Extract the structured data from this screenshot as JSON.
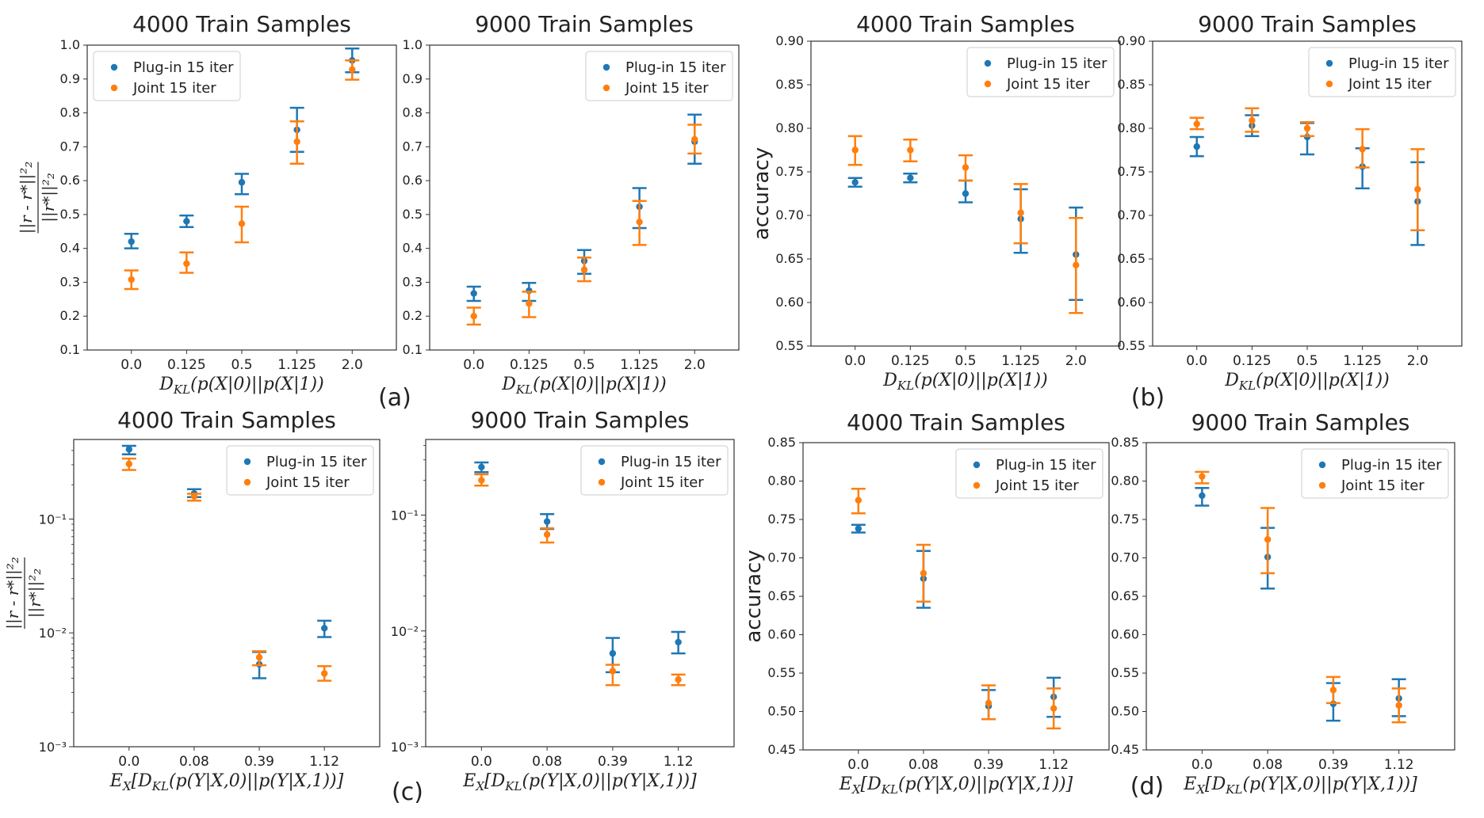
{
  "colors": {
    "plugin": "#1f77b4",
    "joint": "#ff7f0e"
  },
  "panel_letters": [
    "(a)",
    "(b)",
    "(c)",
    "(d)"
  ],
  "chart_data": [
    {
      "id": "a1",
      "type": "scatter",
      "title": "4000 Train Samples",
      "ylabel": "||r - r*||²₂ / ||r*||²₂",
      "ylabel_kind": "ratio",
      "xlabel": "D_KL(p(X|0)||p(X|1))",
      "categories": [
        "0.0",
        "0.125",
        "0.5",
        "1.125",
        "2.0"
      ],
      "scale": "linear",
      "ylim": [
        0.1,
        1.0
      ],
      "yticks": [
        "0.1",
        "0.2",
        "0.3",
        "0.4",
        "0.5",
        "0.6",
        "0.7",
        "0.8",
        "0.9",
        "1.0"
      ],
      "legend": "top-left",
      "series": [
        {
          "name": "Plug-in 15 iter",
          "color": "plugin",
          "values": [
            0.42,
            0.48,
            0.595,
            0.75,
            0.955
          ],
          "err_low": [
            0.4,
            0.463,
            0.56,
            0.685,
            0.92
          ],
          "err_high": [
            0.443,
            0.497,
            0.62,
            0.815,
            0.99
          ]
        },
        {
          "name": "Joint 15 iter",
          "color": "joint",
          "values": [
            0.308,
            0.355,
            0.473,
            0.715,
            0.928
          ],
          "err_low": [
            0.28,
            0.328,
            0.418,
            0.65,
            0.898
          ],
          "err_high": [
            0.335,
            0.388,
            0.523,
            0.775,
            0.955
          ]
        }
      ]
    },
    {
      "id": "a2",
      "type": "scatter",
      "title": "9000 Train Samples",
      "xlabel": "D_KL(p(X|0)||p(X|1))",
      "categories": [
        "0.0",
        "0.125",
        "0.5",
        "1.125",
        "2.0"
      ],
      "scale": "linear",
      "ylim": [
        0.1,
        1.0
      ],
      "yticks": [
        "0.1",
        "0.2",
        "0.3",
        "0.4",
        "0.5",
        "0.6",
        "0.7",
        "0.8",
        "0.9",
        "1.0"
      ],
      "legend": "top-right",
      "series": [
        {
          "name": "Plug-in 15 iter",
          "color": "plugin",
          "values": [
            0.267,
            0.275,
            0.363,
            0.523,
            0.715
          ],
          "err_low": [
            0.245,
            0.245,
            0.325,
            0.46,
            0.65
          ],
          "err_high": [
            0.287,
            0.298,
            0.395,
            0.578,
            0.795
          ]
        },
        {
          "name": "Joint 15 iter",
          "color": "joint",
          "values": [
            0.2,
            0.237,
            0.337,
            0.478,
            0.722
          ],
          "err_low": [
            0.175,
            0.197,
            0.303,
            0.41,
            0.68
          ],
          "err_high": [
            0.225,
            0.272,
            0.373,
            0.54,
            0.765
          ]
        }
      ]
    },
    {
      "id": "b1",
      "type": "scatter",
      "title": "4000 Train Samples",
      "ylabel": "accuracy",
      "ylabel_kind": "text",
      "xlabel": "D_KL(p(X|0)||p(X|1))",
      "categories": [
        "0.0",
        "0.125",
        "0.5",
        "1.125",
        "2.0"
      ],
      "scale": "linear",
      "ylim": [
        0.55,
        0.9
      ],
      "yticks": [
        "0.55",
        "0.60",
        "0.65",
        "0.70",
        "0.75",
        "0.80",
        "0.85",
        "0.90"
      ],
      "legend": "top-right",
      "series": [
        {
          "name": "Plug-in 15 iter",
          "color": "plugin",
          "values": [
            0.738,
            0.743,
            0.725,
            0.696,
            0.655
          ],
          "err_low": [
            0.733,
            0.738,
            0.715,
            0.657,
            0.603
          ],
          "err_high": [
            0.743,
            0.748,
            0.74,
            0.73,
            0.709
          ]
        },
        {
          "name": "Joint 15 iter",
          "color": "joint",
          "values": [
            0.775,
            0.775,
            0.755,
            0.703,
            0.643
          ],
          "err_low": [
            0.758,
            0.762,
            0.74,
            0.668,
            0.588
          ],
          "err_high": [
            0.791,
            0.787,
            0.769,
            0.736,
            0.697
          ]
        }
      ]
    },
    {
      "id": "b2",
      "type": "scatter",
      "title": "9000 Train Samples",
      "xlabel": "D_KL(p(X|0)||p(X|1))",
      "categories": [
        "0.0",
        "0.125",
        "0.5",
        "1.125",
        "2.0"
      ],
      "scale": "linear",
      "ylim": [
        0.55,
        0.9
      ],
      "yticks": [
        "0.55",
        "0.60",
        "0.65",
        "0.70",
        "0.75",
        "0.80",
        "0.85",
        "0.90"
      ],
      "legend": "top-right",
      "series": [
        {
          "name": "Plug-in 15 iter",
          "color": "plugin",
          "values": [
            0.779,
            0.803,
            0.79,
            0.756,
            0.716
          ],
          "err_low": [
            0.768,
            0.791,
            0.77,
            0.731,
            0.666
          ],
          "err_high": [
            0.79,
            0.815,
            0.806,
            0.777,
            0.761
          ]
        },
        {
          "name": "Joint 15 iter",
          "color": "joint",
          "values": [
            0.805,
            0.809,
            0.8,
            0.776,
            0.73
          ],
          "err_low": [
            0.799,
            0.796,
            0.791,
            0.755,
            0.683
          ],
          "err_high": [
            0.812,
            0.823,
            0.807,
            0.799,
            0.776
          ]
        }
      ]
    },
    {
      "id": "c1",
      "type": "scatter",
      "title": "4000 Train Samples",
      "ylabel": "||r - r*||²₂ / ||r*||²₂",
      "ylabel_kind": "ratio",
      "xlabel": "E_X[D_KL(p(Y|X,0)||p(Y|X,1))]",
      "categories": [
        "0.0",
        "0.08",
        "0.39",
        "1.12"
      ],
      "scale": "log",
      "ylim": [
        0.001,
        0.5
      ],
      "yticks_log": [
        {
          "v": 0.1,
          "label": "10⁻¹"
        },
        {
          "v": 0.01,
          "label": "10⁻²"
        },
        {
          "v": 0.001,
          "label": "10⁻³"
        }
      ],
      "legend": "top-right",
      "series": [
        {
          "name": "Plug-in 15 iter",
          "color": "plugin",
          "values": [
            0.41,
            0.168,
            0.0053,
            0.011
          ],
          "err_low": [
            0.37,
            0.156,
            0.004,
            0.0092
          ],
          "err_high": [
            0.44,
            0.183,
            0.0068,
            0.0128
          ]
        },
        {
          "name": "Joint 15 iter",
          "color": "joint",
          "values": [
            0.305,
            0.158,
            0.0061,
            0.0044
          ],
          "err_low": [
            0.27,
            0.145,
            0.0052,
            0.0038
          ],
          "err_high": [
            0.34,
            0.167,
            0.0069,
            0.0051
          ]
        }
      ]
    },
    {
      "id": "c2",
      "type": "scatter",
      "title": "9000 Train Samples",
      "xlabel": "E_X[D_KL(p(Y|X,0)||p(Y|X,1))]",
      "categories": [
        "0.0",
        "0.08",
        "0.39",
        "1.12"
      ],
      "scale": "log",
      "ylim": [
        0.001,
        0.45
      ],
      "yticks_log": [
        {
          "v": 0.1,
          "label": "10⁻¹"
        },
        {
          "v": 0.01,
          "label": "10⁻²"
        },
        {
          "v": 0.001,
          "label": "10⁻³"
        }
      ],
      "legend": "top-right",
      "series": [
        {
          "name": "Plug-in 15 iter",
          "color": "plugin",
          "values": [
            0.26,
            0.088,
            0.0064,
            0.008
          ],
          "err_low": [
            0.235,
            0.076,
            0.0044,
            0.0064
          ],
          "err_high": [
            0.285,
            0.102,
            0.0087,
            0.0098
          ]
        },
        {
          "name": "Joint 15 iter",
          "color": "joint",
          "values": [
            0.2,
            0.068,
            0.0045,
            0.0038
          ],
          "err_low": [
            0.18,
            0.058,
            0.0034,
            0.0034
          ],
          "err_high": [
            0.225,
            0.077,
            0.0051,
            0.0042
          ]
        }
      ]
    },
    {
      "id": "d1",
      "type": "scatter",
      "title": "4000 Train Samples",
      "ylabel": "accuracy",
      "ylabel_kind": "text",
      "xlabel": "E_X[D_KL(p(Y|X,0)||p(Y|X,1))]",
      "categories": [
        "0.0",
        "0.08",
        "0.39",
        "1.12"
      ],
      "scale": "linear",
      "ylim": [
        0.45,
        0.85
      ],
      "yticks": [
        "0.45",
        "0.50",
        "0.55",
        "0.60",
        "0.65",
        "0.70",
        "0.75",
        "0.80",
        "0.85"
      ],
      "legend": "top-right",
      "series": [
        {
          "name": "Plug-in 15 iter",
          "color": "plugin",
          "values": [
            0.738,
            0.673,
            0.507,
            0.519
          ],
          "err_low": [
            0.733,
            0.635,
            0.49,
            0.493
          ],
          "err_high": [
            0.743,
            0.709,
            0.528,
            0.544
          ]
        },
        {
          "name": "Joint 15 iter",
          "color": "joint",
          "values": [
            0.775,
            0.68,
            0.511,
            0.504
          ],
          "err_low": [
            0.758,
            0.643,
            0.49,
            0.478
          ],
          "err_high": [
            0.79,
            0.717,
            0.534,
            0.53
          ]
        }
      ]
    },
    {
      "id": "d2",
      "type": "scatter",
      "title": "9000 Train Samples",
      "xlabel": "E_X[D_KL(p(Y|X,0)||p(Y|X,1))]",
      "categories": [
        "0.0",
        "0.08",
        "0.39",
        "1.12"
      ],
      "scale": "linear",
      "ylim": [
        0.45,
        0.85
      ],
      "yticks": [
        "0.45",
        "0.50",
        "0.55",
        "0.60",
        "0.65",
        "0.70",
        "0.75",
        "0.80",
        "0.85"
      ],
      "legend": "top-right",
      "series": [
        {
          "name": "Plug-in 15 iter",
          "color": "plugin",
          "values": [
            0.781,
            0.701,
            0.51,
            0.517
          ],
          "err_low": [
            0.768,
            0.66,
            0.488,
            0.494
          ],
          "err_high": [
            0.791,
            0.739,
            0.537,
            0.542
          ]
        },
        {
          "name": "Joint 15 iter",
          "color": "joint",
          "values": [
            0.806,
            0.724,
            0.528,
            0.508
          ],
          "err_low": [
            0.797,
            0.68,
            0.511,
            0.486
          ],
          "err_high": [
            0.812,
            0.765,
            0.545,
            0.53
          ]
        }
      ]
    }
  ]
}
